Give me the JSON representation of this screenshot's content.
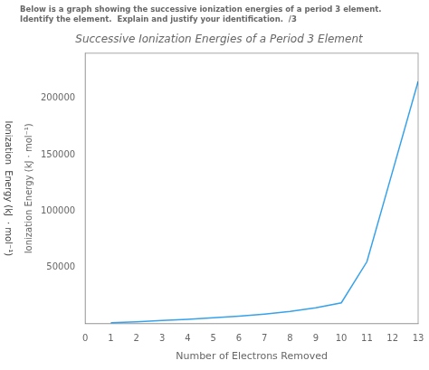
{
  "chart_data": {
    "type": "line",
    "title": "Successive Ionization Energies of a Period 3 Element",
    "subtitle": [
      "Below is a graph showing the successive ionization energies of a period 3 element.",
      "Identify the element.  Explain and justify your identification.  /3"
    ],
    "xlabel": "Number of Electrons Removed",
    "ylabel": "Ionization Energy (kJ · mol⁻¹)",
    "annotations": [
      "Ionization",
      "Energy (kJ",
      "· mol⁻¹)"
    ],
    "x": [
      1,
      2,
      3,
      4,
      5,
      6,
      7,
      8,
      9,
      10,
      11,
      12,
      13
    ],
    "values": [
      800,
      1700,
      2750,
      3900,
      5200,
      6700,
      8500,
      10800,
      14000,
      18500,
      55000,
      135000,
      215000
    ],
    "xlim": [
      0,
      13
    ],
    "xticks": [
      0,
      1,
      2,
      3,
      4,
      5,
      6,
      7,
      8,
      9,
      10,
      11,
      12,
      13
    ],
    "ylim": [
      0,
      240000
    ],
    "yticks": [
      50000,
      100000,
      150000,
      200000
    ],
    "grid": false,
    "marker": "none"
  }
}
